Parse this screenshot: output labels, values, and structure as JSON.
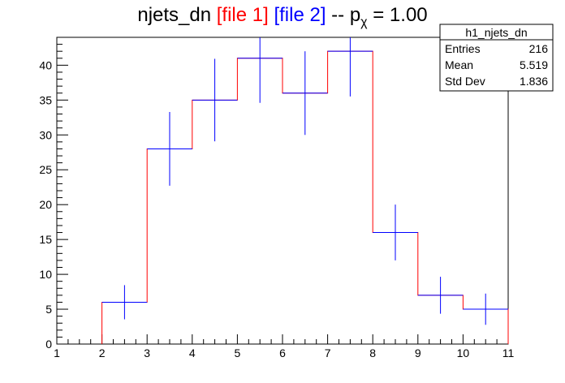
{
  "title": {
    "prefix": "njets_dn ",
    "file1": "[file 1]",
    "file2": "[file 2]",
    "suffix_pre": " -- p",
    "subscript": "χ",
    "suffix_post": " = 1.00",
    "file1_color": "#ff0000",
    "file2_color": "#0000ff"
  },
  "stats": {
    "name": "h1_njets_dn",
    "rows": [
      {
        "label": "Entries",
        "value": "216"
      },
      {
        "label": "Mean",
        "value": "5.519"
      },
      {
        "label": "Std Dev",
        "value": "1.836"
      }
    ]
  },
  "chart_data": {
    "type": "histogram",
    "xlim": [
      1,
      11
    ],
    "ylim": [
      0,
      44
    ],
    "x_ticks": [
      1,
      2,
      3,
      4,
      5,
      6,
      7,
      8,
      9,
      10,
      11
    ],
    "y_ticks": [
      0,
      5,
      10,
      15,
      20,
      25,
      30,
      35,
      40
    ],
    "bin_edges": [
      2,
      3,
      4,
      5,
      6,
      7,
      8,
      9,
      10,
      11
    ],
    "series": [
      {
        "name": "file 1",
        "color": "#ff0000",
        "style": "step",
        "values": [
          6,
          28,
          35,
          41,
          36,
          42,
          16,
          7,
          5
        ]
      },
      {
        "name": "file 2",
        "color": "#0000ff",
        "style": "errorbar",
        "values": [
          6,
          28,
          35,
          41,
          36,
          42,
          16,
          7,
          5
        ],
        "errors": [
          2.45,
          5.29,
          5.92,
          6.4,
          6.0,
          6.48,
          4.0,
          2.65,
          2.24
        ]
      }
    ]
  }
}
